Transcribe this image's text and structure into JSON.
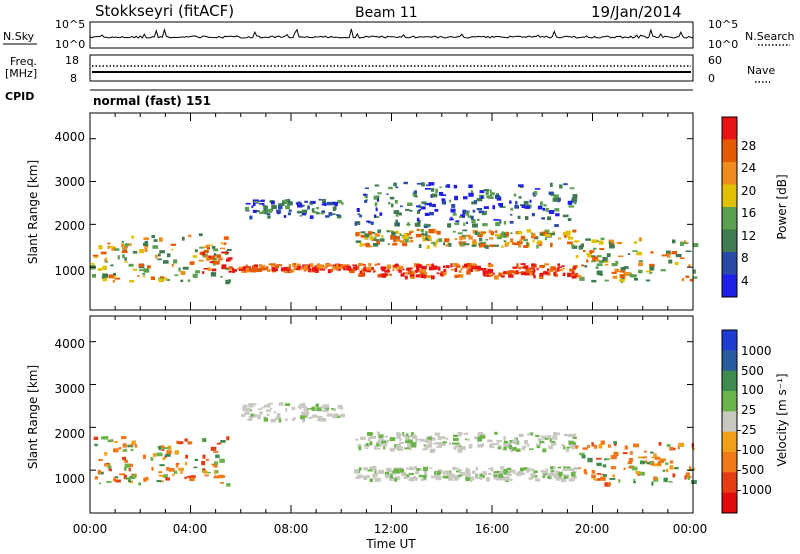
{
  "header": {
    "station": "Stokkseyri (fitACF)",
    "beam": "Beam 11",
    "date": "19/Jan/2014"
  },
  "noise_panel": {
    "left_label": "N.Sky",
    "left_ticks": [
      "10^5",
      "10^0"
    ],
    "right_label": "N.Search",
    "right_ticks": [
      "10^5",
      "10^0"
    ]
  },
  "freq_panel": {
    "left_label_1": "Freq.",
    "left_label_2": "[MHz]",
    "left_ticks": [
      "18",
      "8"
    ],
    "right_label": "Nave",
    "right_ticks": [
      "60",
      "0"
    ]
  },
  "cpid": {
    "label": "CPID",
    "value": "normal (fast) 151"
  },
  "colors": {
    "power": [
      "#1e1ee6",
      "#2a4aa8",
      "#3f7a50",
      "#5aa050",
      "#e0c000",
      "#f08c1e",
      "#e65a00",
      "#e81414"
    ],
    "velocity": [
      "#1e3cd2",
      "#2a5aa0",
      "#3f8c50",
      "#6ab44a",
      "#c8c8c0",
      "#f0a018",
      "#f07818",
      "#e63c14",
      "#e00a0a"
    ]
  },
  "chart_data": [
    {
      "type": "heatmap",
      "name": "power",
      "ylabel": "Slant Range [km]",
      "xlabel": "",
      "y_ticks": [
        "1000",
        "2000",
        "3000",
        "4000"
      ],
      "ylim": [
        0,
        4600
      ],
      "xlim": [
        "00:00",
        "24:00"
      ],
      "colorbar_label": "Power [dB]",
      "colorbar_ticks": [
        "28",
        "24",
        "20",
        "16",
        "12",
        "8",
        "4"
      ],
      "bands": [
        {
          "t0": 0.0,
          "t1": 5.5,
          "r0": 700,
          "r1": 1800,
          "level": "mid"
        },
        {
          "t0": 4.3,
          "t1": 5.6,
          "r0": 900,
          "r1": 1500,
          "level": "high"
        },
        {
          "t0": 5.5,
          "t1": 10.5,
          "r0": 950,
          "r1": 1100,
          "level": "high"
        },
        {
          "t0": 10.5,
          "t1": 19.3,
          "r0": 800,
          "r1": 1100,
          "level": "high"
        },
        {
          "t0": 10.5,
          "t1": 19.3,
          "r0": 1500,
          "r1": 1900,
          "level": "mid"
        },
        {
          "t0": 10.5,
          "t1": 19.3,
          "r0": 2000,
          "r1": 3000,
          "level": "low"
        },
        {
          "t0": 6.0,
          "t1": 10.0,
          "r0": 2200,
          "r1": 2600,
          "level": "low"
        },
        {
          "t0": 19.3,
          "t1": 24.0,
          "r0": 700,
          "r1": 1700,
          "level": "mid"
        }
      ]
    },
    {
      "type": "heatmap",
      "name": "velocity",
      "ylabel": "Slant Range [km]",
      "xlabel": "Time UT",
      "y_ticks": [
        "1000",
        "2000",
        "3000",
        "4000"
      ],
      "ylim": [
        0,
        4600
      ],
      "x_ticks": [
        "00:00",
        "04:00",
        "08:00",
        "12:00",
        "16:00",
        "20:00",
        "00:00"
      ],
      "xlim": [
        "00:00",
        "24:00"
      ],
      "colorbar_label": "Velocity [m s⁻¹]",
      "colorbar_ticks": [
        "1000",
        "500",
        "100",
        "25",
        "-25",
        "-100",
        "-500",
        "-1000"
      ],
      "bands": [
        {
          "t0": 0.0,
          "t1": 5.5,
          "r0": 700,
          "r1": 1800,
          "level": "orange"
        },
        {
          "t0": 6.0,
          "t1": 10.0,
          "r0": 2200,
          "r1": 2600,
          "level": "grey"
        },
        {
          "t0": 10.5,
          "t1": 19.3,
          "r0": 800,
          "r1": 1100,
          "level": "grey"
        },
        {
          "t0": 10.5,
          "t1": 19.3,
          "r0": 1500,
          "r1": 1900,
          "level": "grey"
        },
        {
          "t0": 19.3,
          "t1": 24.0,
          "r0": 700,
          "r1": 1700,
          "level": "orange"
        }
      ]
    }
  ]
}
